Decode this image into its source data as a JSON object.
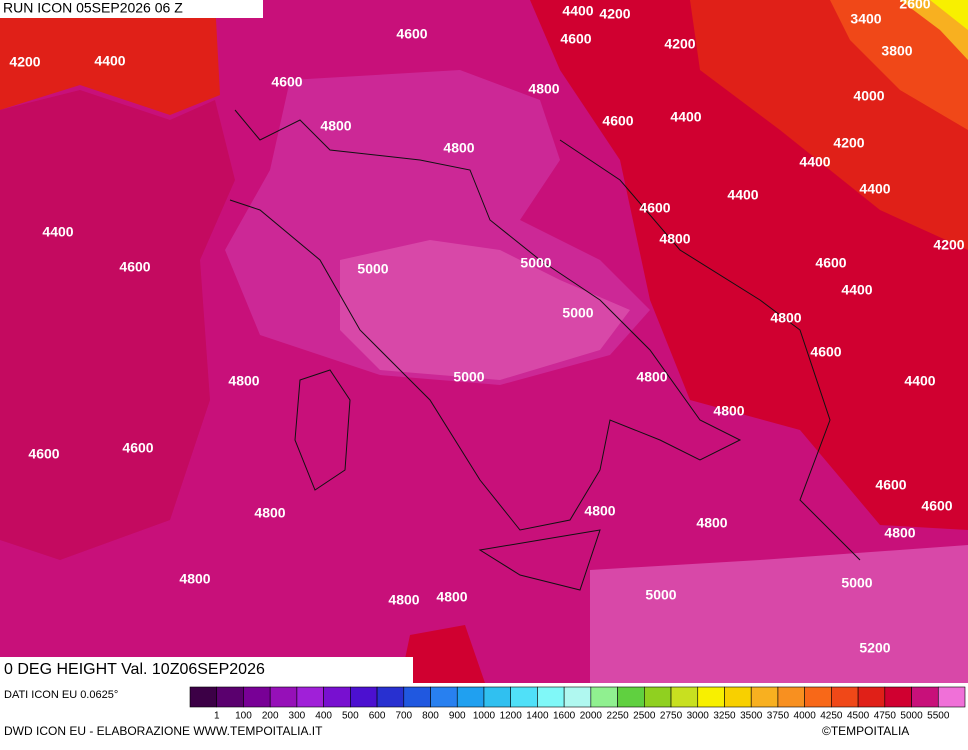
{
  "header": {
    "run": "RUN ICON 05SEP2026 06 Z"
  },
  "map": {
    "contour_labels": [
      "4400",
      "4200",
      "3400",
      "2600",
      "4600",
      "4600",
      "4200",
      "3800",
      "4200",
      "4400",
      "4600",
      "4800",
      "4000",
      "4800",
      "4600",
      "4400",
      "4800",
      "4200",
      "4400",
      "4400",
      "4400",
      "4600",
      "4400",
      "4800",
      "4200",
      "4600",
      "5000",
      "5000",
      "4600",
      "4400",
      "5000",
      "4800",
      "4600",
      "4800",
      "5000",
      "4800",
      "4400",
      "4800",
      "4600",
      "4600",
      "4600",
      "4600",
      "4800",
      "4800",
      "4800",
      "4800",
      "4800",
      "5000",
      "5000",
      "4800",
      "4800",
      "5200"
    ]
  },
  "field_label": "0 DEG HEIGHT Val. 10Z06SEP2026",
  "legend": {
    "source": "DATI ICON EU 0.0625°",
    "labels": [
      "1",
      "100",
      "200",
      "300",
      "400",
      "500",
      "600",
      "700",
      "800",
      "900",
      "1000",
      "1200",
      "1400",
      "1600",
      "2000",
      "2250",
      "2500",
      "2750",
      "3000",
      "3250",
      "3500",
      "3750",
      "4000",
      "4250",
      "4500",
      "4750",
      "5000",
      "5500"
    ],
    "colors": [
      "#3c0046",
      "#5a006e",
      "#780096",
      "#9610b8",
      "#a020d8",
      "#7810d0",
      "#4c10d0",
      "#2830d0",
      "#2058e0",
      "#2880f0",
      "#20a0f0",
      "#30c0f0",
      "#50e0f8",
      "#80f8f8",
      "#b0f8f0",
      "#90f090",
      "#60d040",
      "#90d020",
      "#c8e020",
      "#f8f000",
      "#f8d000",
      "#f8b020",
      "#f89020",
      "#f86818",
      "#f04818",
      "#e02018",
      "#d00030",
      "#c8107a",
      "#f070d8"
    ]
  },
  "footer": {
    "credit": "DWD ICON EU - ELABORAZIONE WWW.TEMPOITALIA.IT",
    "copyright": "©TEMPOITALIA"
  }
}
